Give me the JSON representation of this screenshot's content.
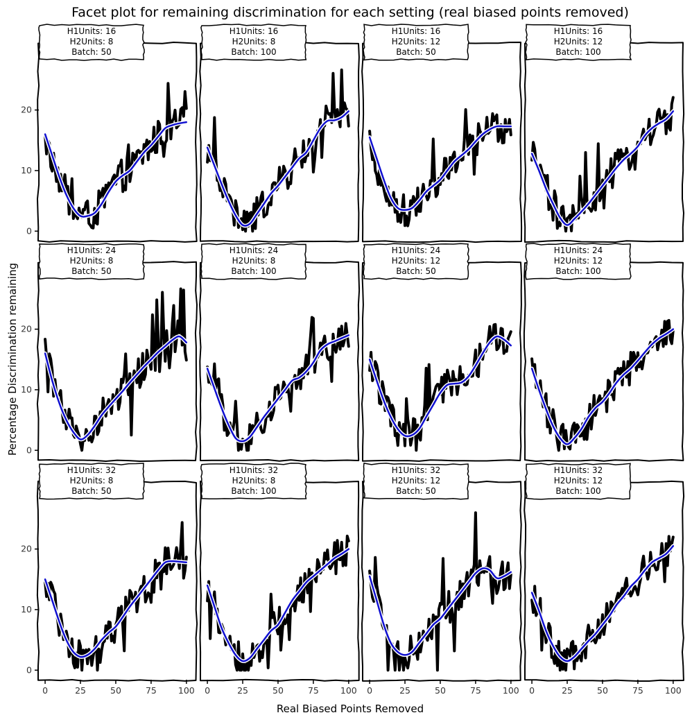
{
  "title": "Facet plot for remaining discrimination for each setting (real biased points removed)",
  "xlabel": "Real Biased Points Removed",
  "ylabel": "Percentage Discrimination remaining",
  "x_ticks": [
    "0",
    "25",
    "50",
    "75",
    "100"
  ],
  "y_ticks": [
    "0",
    "10",
    "20"
  ],
  "chart_data": {
    "type": "line",
    "xlim": [
      -2,
      104
    ],
    "ylim": [
      -1,
      29
    ],
    "grid": false,
    "series_kinds": [
      "raw",
      "smoothed"
    ],
    "facets": [
      {
        "h1": "H1Units: 16",
        "h2": "H2Units: 8",
        "batch": "Batch: 50",
        "smooth_x": [
          0,
          5,
          10,
          15,
          20,
          25,
          30,
          35,
          40,
          45,
          50,
          55,
          60,
          65,
          70,
          75,
          80,
          85,
          90,
          95,
          100
        ],
        "smooth_y": [
          16.0,
          12.5,
          9.0,
          6.0,
          3.8,
          2.5,
          2.5,
          3.0,
          4.5,
          6.5,
          8.2,
          9.2,
          10.0,
          11.5,
          13.0,
          14.2,
          15.6,
          17.0,
          17.5,
          17.8,
          18.0
        ]
      },
      {
        "h1": "H1Units: 16",
        "h2": "H2Units: 8",
        "batch": "Batch: 100",
        "smooth_x": [
          0,
          5,
          10,
          15,
          20,
          25,
          30,
          35,
          40,
          45,
          50,
          55,
          60,
          65,
          70,
          75,
          80,
          85,
          90,
          95,
          100
        ],
        "smooth_y": [
          13.8,
          10.8,
          7.8,
          5.0,
          2.6,
          1.0,
          1.2,
          2.8,
          4.5,
          6.2,
          7.5,
          9.0,
          10.5,
          12.0,
          13.0,
          15.0,
          17.0,
          18.2,
          18.3,
          18.8,
          19.8
        ]
      },
      {
        "h1": "H1Units: 16",
        "h2": "H2Units: 12",
        "batch": "Batch: 50",
        "smooth_x": [
          0,
          5,
          10,
          15,
          20,
          25,
          30,
          35,
          40,
          45,
          50,
          55,
          60,
          65,
          70,
          75,
          80,
          85,
          90,
          95,
          100
        ],
        "smooth_y": [
          15.5,
          12.0,
          8.5,
          5.5,
          3.8,
          3.5,
          3.8,
          5.0,
          6.5,
          7.5,
          8.5,
          10.0,
          11.5,
          12.5,
          13.5,
          14.8,
          16.0,
          16.8,
          17.3,
          17.3,
          17.3
        ]
      },
      {
        "h1": "H1Units: 16",
        "h2": "H2Units: 12",
        "batch": "Batch: 100",
        "smooth_x": [
          0,
          5,
          10,
          15,
          20,
          25,
          30,
          35,
          40,
          45,
          50,
          55,
          60,
          65,
          70,
          75,
          80,
          85,
          90,
          95,
          100
        ],
        "smooth_y": [
          12.8,
          10.0,
          7.0,
          4.5,
          2.2,
          1.0,
          2.0,
          3.2,
          4.5,
          6.0,
          7.5,
          9.0,
          10.5,
          11.8,
          12.8,
          14.0,
          15.8,
          17.0,
          17.8,
          18.5,
          19.8
        ]
      },
      {
        "h1": "H1Units: 24",
        "h2": "H2Units: 8",
        "batch": "Batch: 50",
        "smooth_x": [
          0,
          5,
          10,
          15,
          20,
          25,
          30,
          35,
          40,
          45,
          50,
          55,
          60,
          65,
          70,
          75,
          80,
          85,
          90,
          95,
          100
        ],
        "smooth_y": [
          16.0,
          11.5,
          7.8,
          5.0,
          3.0,
          1.8,
          2.5,
          4.0,
          5.8,
          7.2,
          8.5,
          9.8,
          11.2,
          12.5,
          13.8,
          15.0,
          16.2,
          17.2,
          18.2,
          18.8,
          17.8
        ]
      },
      {
        "h1": "H1Units: 24",
        "h2": "H2Units: 8",
        "batch": "Batch: 100",
        "smooth_x": [
          0,
          5,
          10,
          15,
          20,
          25,
          30,
          35,
          40,
          45,
          50,
          55,
          60,
          65,
          70,
          75,
          80,
          85,
          90,
          95,
          100
        ],
        "smooth_y": [
          13.5,
          10.2,
          7.0,
          4.2,
          2.0,
          1.5,
          2.2,
          3.8,
          5.5,
          7.0,
          8.5,
          10.0,
          11.5,
          12.0,
          13.0,
          14.5,
          16.5,
          17.5,
          18.0,
          18.5,
          19.0
        ]
      },
      {
        "h1": "H1Units: 24",
        "h2": "H2Units: 12",
        "batch": "Batch: 50",
        "smooth_x": [
          0,
          5,
          10,
          15,
          20,
          25,
          30,
          35,
          40,
          45,
          50,
          55,
          60,
          65,
          70,
          75,
          80,
          85,
          90,
          95,
          100
        ],
        "smooth_y": [
          15.0,
          11.5,
          8.2,
          5.5,
          3.5,
          2.4,
          2.5,
          3.5,
          5.5,
          7.5,
          9.5,
          10.8,
          11.0,
          11.2,
          12.2,
          14.0,
          16.0,
          17.8,
          18.8,
          18.3,
          17.3
        ]
      },
      {
        "h1": "H1Units: 24",
        "h2": "H2Units: 12",
        "batch": "Batch: 100",
        "smooth_x": [
          0,
          5,
          10,
          15,
          20,
          25,
          30,
          35,
          40,
          45,
          50,
          55,
          60,
          65,
          70,
          75,
          80,
          85,
          90,
          95,
          100
        ],
        "smooth_y": [
          13.5,
          10.0,
          6.8,
          4.0,
          2.0,
          1.0,
          2.0,
          3.5,
          5.5,
          7.0,
          8.0,
          9.5,
          11.2,
          12.5,
          13.5,
          14.8,
          16.2,
          17.5,
          18.5,
          19.2,
          20.0
        ]
      },
      {
        "h1": "H1Units: 32",
        "h2": "H2Units: 8",
        "batch": "Batch: 50",
        "smooth_x": [
          0,
          5,
          10,
          15,
          20,
          25,
          30,
          35,
          40,
          45,
          50,
          55,
          60,
          65,
          70,
          75,
          80,
          85,
          90,
          95,
          100
        ],
        "smooth_y": [
          15.0,
          11.5,
          8.0,
          5.0,
          3.0,
          2.2,
          2.5,
          3.5,
          5.0,
          6.2,
          7.2,
          8.8,
          10.5,
          12.0,
          13.5,
          15.0,
          16.5,
          17.8,
          18.0,
          17.9,
          17.8
        ]
      },
      {
        "h1": "H1Units: 32",
        "h2": "H2Units: 8",
        "batch": "Batch: 100",
        "smooth_x": [
          0,
          5,
          10,
          15,
          20,
          25,
          30,
          35,
          40,
          45,
          50,
          55,
          60,
          65,
          70,
          75,
          80,
          85,
          90,
          95,
          100
        ],
        "smooth_y": [
          14.0,
          10.5,
          7.0,
          4.5,
          2.5,
          1.5,
          2.0,
          3.5,
          5.0,
          6.5,
          7.5,
          9.5,
          11.5,
          13.0,
          14.5,
          15.5,
          16.5,
          17.5,
          18.5,
          19.2,
          20.0
        ]
      },
      {
        "h1": "H1Units: 32",
        "h2": "H2Units: 12",
        "batch": "Batch: 50",
        "smooth_x": [
          0,
          5,
          10,
          15,
          20,
          25,
          30,
          35,
          40,
          45,
          50,
          55,
          60,
          65,
          70,
          75,
          80,
          85,
          90,
          95,
          100
        ],
        "smooth_y": [
          15.5,
          11.5,
          7.5,
          4.5,
          3.0,
          2.5,
          3.0,
          4.5,
          6.0,
          7.5,
          8.5,
          10.0,
          11.5,
          13.0,
          14.5,
          16.0,
          16.8,
          16.5,
          15.2,
          15.5,
          16.2
        ]
      },
      {
        "h1": "H1Units: 32",
        "h2": "H2Units: 12",
        "batch": "Batch: 100",
        "smooth_x": [
          0,
          5,
          10,
          15,
          20,
          25,
          30,
          35,
          40,
          45,
          50,
          55,
          60,
          65,
          70,
          75,
          80,
          85,
          90,
          95,
          100
        ],
        "smooth_y": [
          12.8,
          9.8,
          6.5,
          4.0,
          2.2,
          1.5,
          2.2,
          3.5,
          4.8,
          6.0,
          7.5,
          9.0,
          10.8,
          12.2,
          13.8,
          15.0,
          16.5,
          17.8,
          18.5,
          19.2,
          20.5
        ]
      }
    ]
  }
}
